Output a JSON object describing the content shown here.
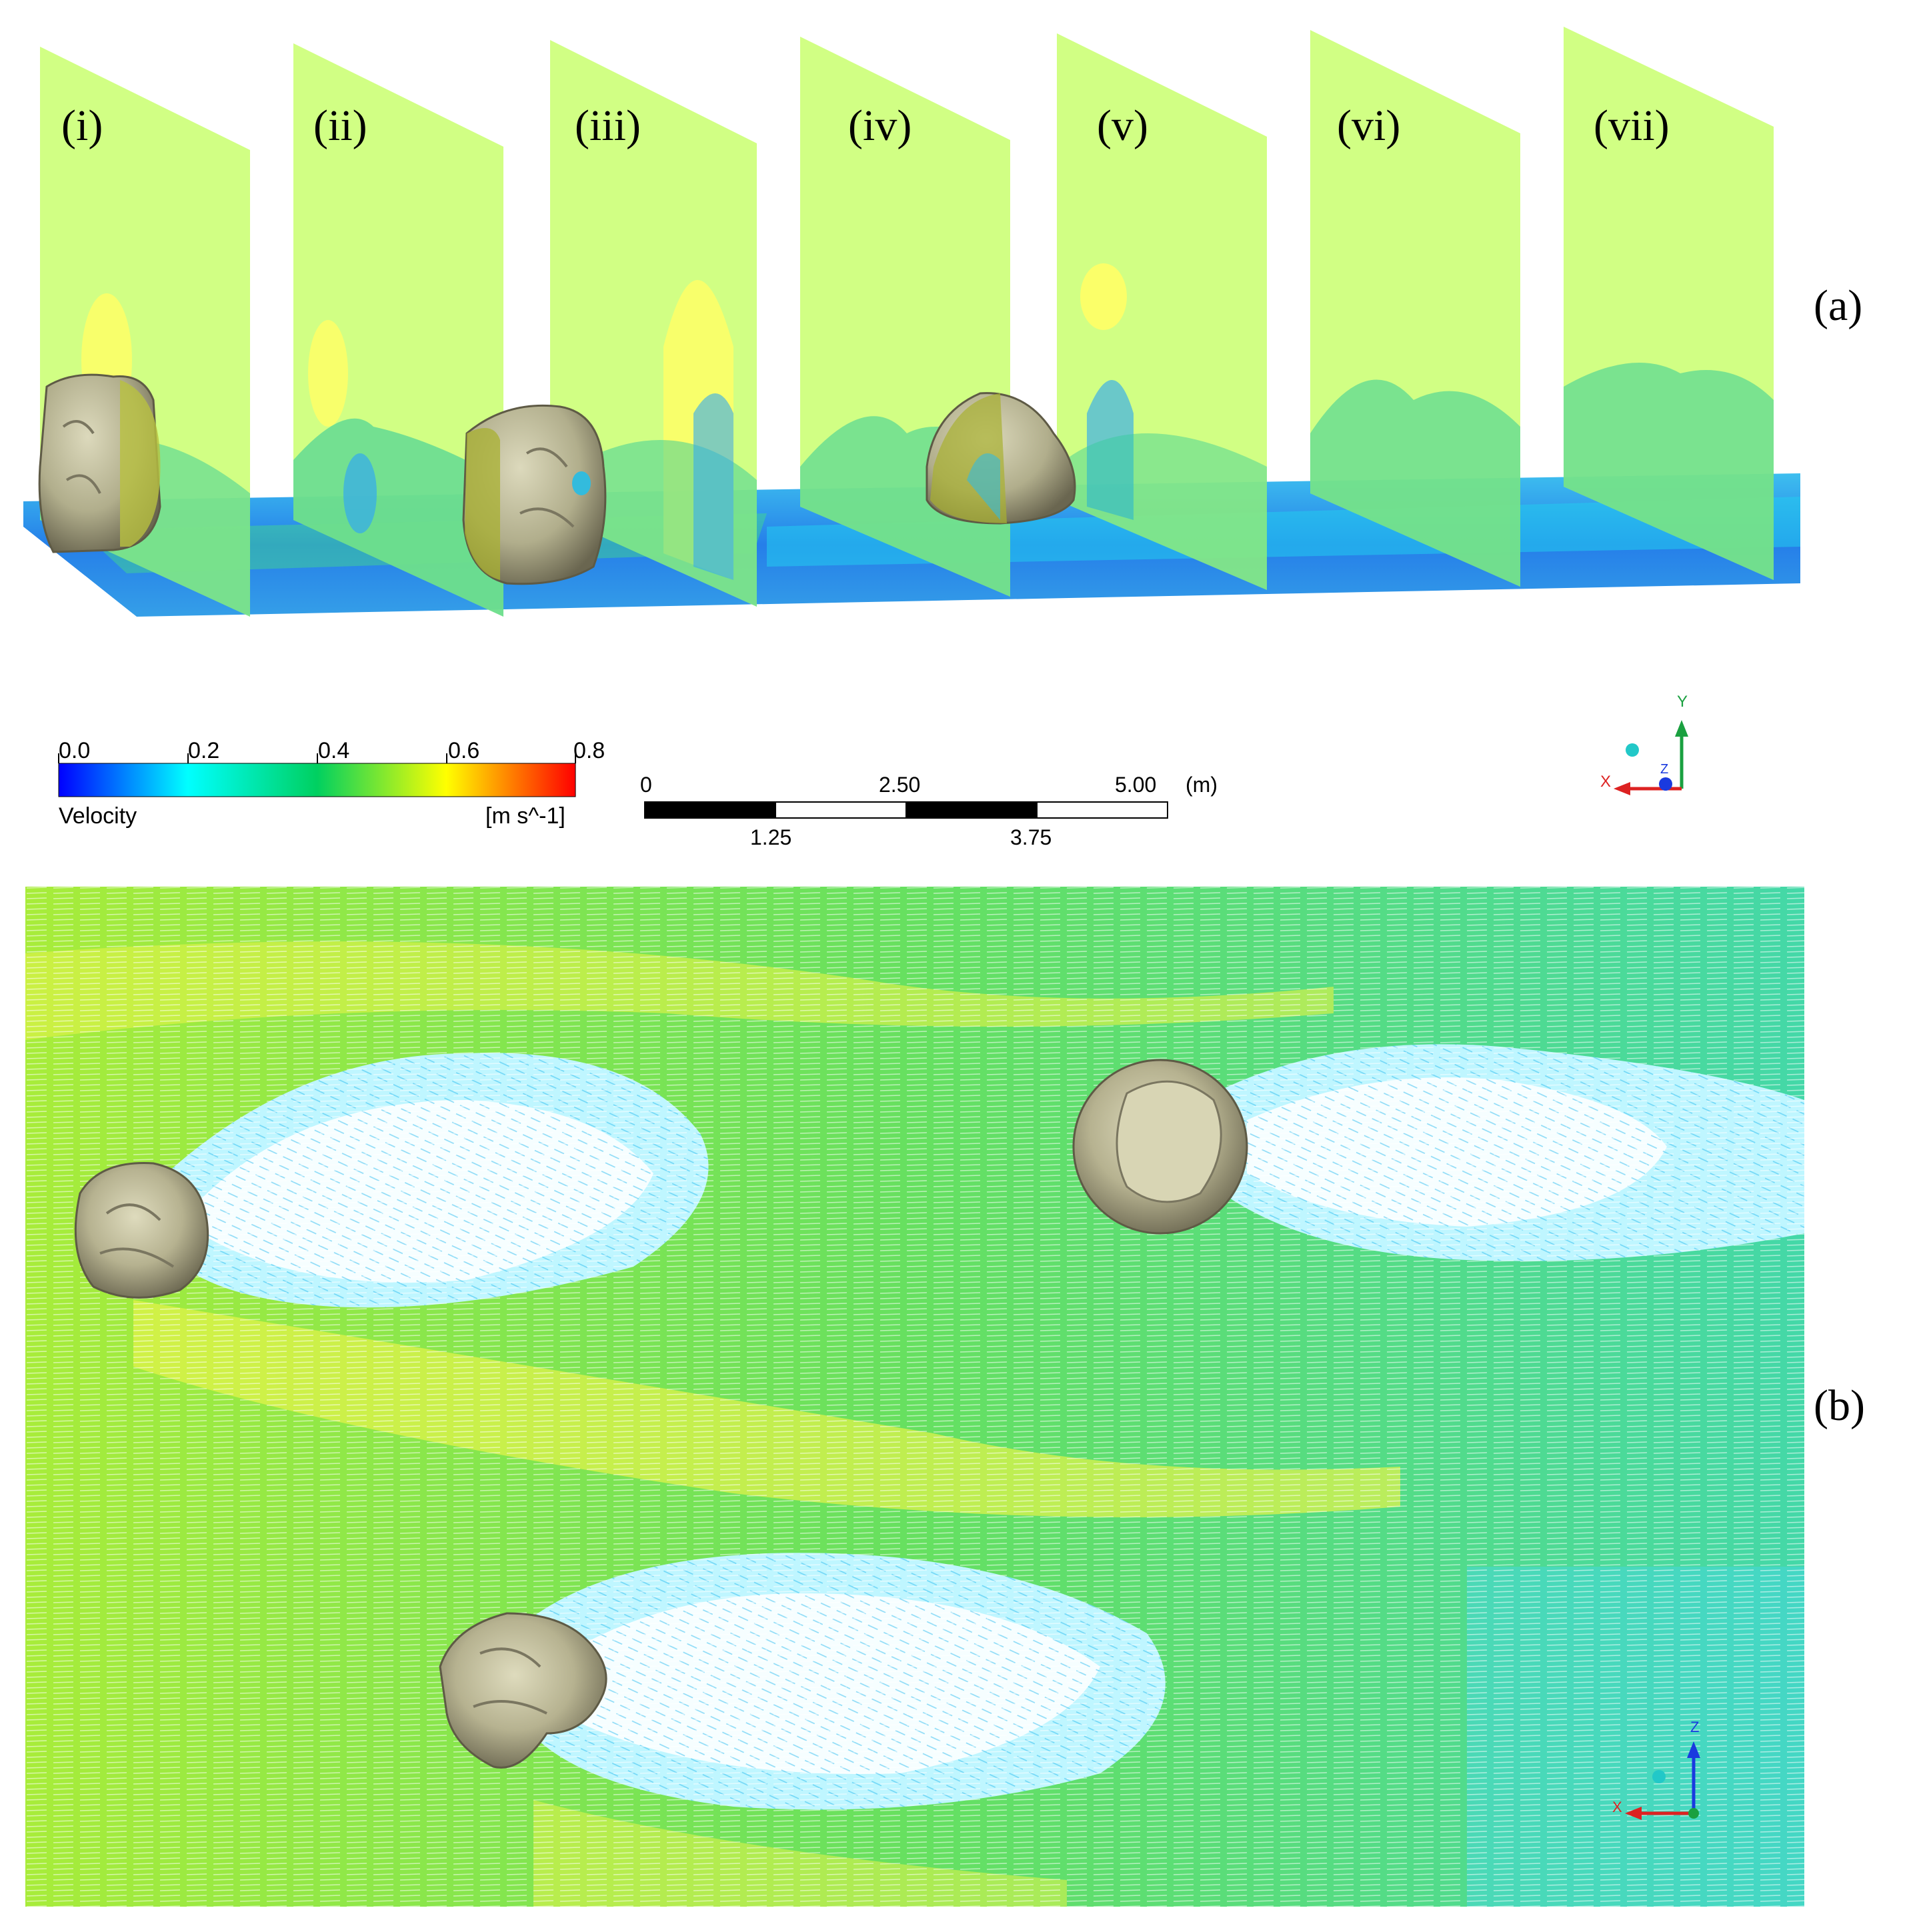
{
  "panel_a": {
    "tag": "(a)",
    "plane_labels": [
      "(i)",
      "(ii)",
      "(iii)",
      "(iv)",
      "(v)",
      "(vi)",
      "(vii)"
    ]
  },
  "panel_b": {
    "tag": "(b)"
  },
  "legend": {
    "ticks": [
      "0.0",
      "0.2",
      "0.4",
      "0.6",
      "0.8"
    ],
    "variable": "Velocity",
    "units": "[m s^-1]",
    "colors": [
      "#0000ff",
      "#00ffff",
      "#00d060",
      "#ffff00",
      "#ff0000"
    ]
  },
  "scale_bar": {
    "top_labels": [
      "0",
      "2.50",
      "5.00"
    ],
    "unit": "(m)",
    "bottom_labels": [
      "1.25",
      "3.75"
    ]
  },
  "triad_a": {
    "y": "Y",
    "x": "X",
    "z": "Z"
  },
  "triad_b": {
    "z": "Z",
    "x": "X"
  },
  "colors": {
    "plane": "#ccff77",
    "yellow": "#ffff66",
    "floor_blue": "#2266ee",
    "boulder": "#b8b593",
    "boulder_dark": "#6e6a52"
  }
}
